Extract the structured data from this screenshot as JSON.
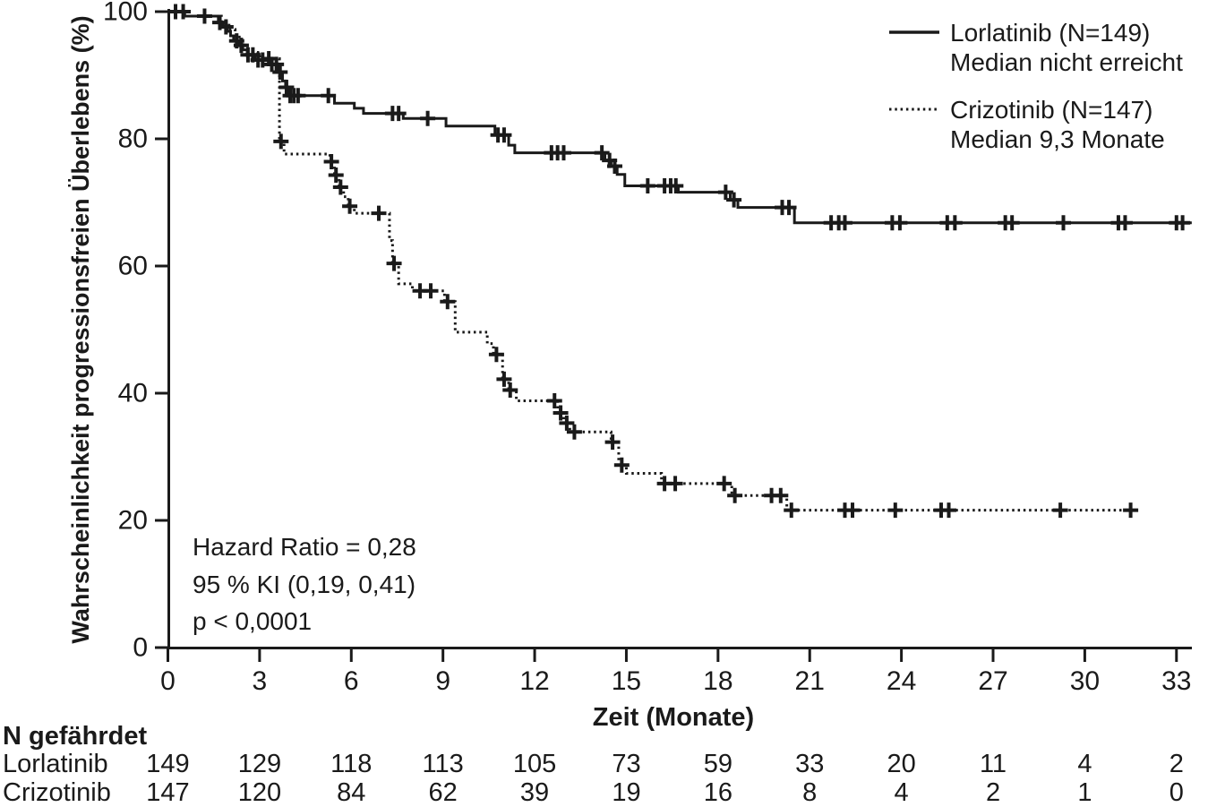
{
  "colors": {
    "ink": "#1a1a1a",
    "background": "#ffffff"
  },
  "legend": {
    "entries": [
      {
        "label": "Lorlatinib (N=149)",
        "sublabel": "Median nicht erreicht",
        "style": "solid"
      },
      {
        "label": "Crizotinib (N=147)",
        "sublabel": "Median 9,3 Monate",
        "style": "dotted"
      }
    ]
  },
  "annotation": {
    "line1": "Hazard Ratio = 0,28",
    "line2": "95 % KI (0,19, 0,41)",
    "line3": "p < 0,0001"
  },
  "chart_data": {
    "type": "line",
    "subtype": "kaplan-meier-step",
    "title": "",
    "xlabel": "Zeit (Monate)",
    "ylabel": "Wahrscheinlichkeit progressionsfreien Überlebens (%)",
    "xlim": [
      0,
      33.5
    ],
    "ylim": [
      0,
      100
    ],
    "xticks": [
      0,
      3,
      6,
      9,
      12,
      15,
      18,
      21,
      24,
      27,
      30,
      33
    ],
    "yticks": [
      0,
      20,
      40,
      60,
      80,
      100
    ],
    "grid": false,
    "legend_position": "top-right",
    "series": [
      {
        "name": "Lorlatinib",
        "n": 149,
        "median": "nicht erreicht",
        "line_style": "solid",
        "end_month": 33.5,
        "steps": [
          [
            0,
            100
          ],
          [
            0.55,
            99.3
          ],
          [
            1.65,
            98.3
          ],
          [
            1.8,
            97.6
          ],
          [
            1.95,
            96.9
          ],
          [
            2.05,
            96.2
          ],
          [
            2.15,
            95.4
          ],
          [
            2.3,
            94.7
          ],
          [
            2.45,
            94.0
          ],
          [
            2.6,
            93.2
          ],
          [
            2.85,
            92.4
          ],
          [
            3.3,
            91.7
          ],
          [
            3.6,
            90.5
          ],
          [
            3.75,
            89.1
          ],
          [
            3.85,
            88.1
          ],
          [
            3.95,
            86.8
          ],
          [
            5.45,
            85.6
          ],
          [
            6.1,
            84.8
          ],
          [
            6.4,
            84.0
          ],
          [
            7.7,
            83.2
          ],
          [
            9.1,
            82.0
          ],
          [
            10.7,
            80.6
          ],
          [
            11.15,
            79.0
          ],
          [
            11.35,
            77.8
          ],
          [
            14.3,
            76.6
          ],
          [
            14.5,
            75.7
          ],
          [
            14.7,
            74.4
          ],
          [
            14.95,
            72.6
          ],
          [
            16.7,
            71.6
          ],
          [
            18.4,
            70.4
          ],
          [
            18.65,
            69.2
          ],
          [
            20.5,
            66.8
          ]
        ],
        "censors": [
          [
            0.25,
            100
          ],
          [
            0.5,
            100
          ],
          [
            1.2,
            99.3
          ],
          [
            1.7,
            98.3
          ],
          [
            1.9,
            97.6
          ],
          [
            2.25,
            95.4
          ],
          [
            2.4,
            94.7
          ],
          [
            2.62,
            93.2
          ],
          [
            2.78,
            93.2
          ],
          [
            2.95,
            92.4
          ],
          [
            3.1,
            92.4
          ],
          [
            3.4,
            91.7
          ],
          [
            3.55,
            91.7
          ],
          [
            3.67,
            90.5
          ],
          [
            3.88,
            88.1
          ],
          [
            4.0,
            86.8
          ],
          [
            4.12,
            86.8
          ],
          [
            4.26,
            86.8
          ],
          [
            5.25,
            86.8
          ],
          [
            7.35,
            84.0
          ],
          [
            7.55,
            84.0
          ],
          [
            8.5,
            83.2
          ],
          [
            10.8,
            80.6
          ],
          [
            11.0,
            80.6
          ],
          [
            12.55,
            77.8
          ],
          [
            12.75,
            77.8
          ],
          [
            12.95,
            77.8
          ],
          [
            14.2,
            77.8
          ],
          [
            14.45,
            76.6
          ],
          [
            14.62,
            75.7
          ],
          [
            15.7,
            72.6
          ],
          [
            16.25,
            72.6
          ],
          [
            16.45,
            72.6
          ],
          [
            16.62,
            72.6
          ],
          [
            18.25,
            71.6
          ],
          [
            18.52,
            70.4
          ],
          [
            20.1,
            69.2
          ],
          [
            20.32,
            69.2
          ],
          [
            21.7,
            66.8
          ],
          [
            21.95,
            66.8
          ],
          [
            22.15,
            66.8
          ],
          [
            23.7,
            66.8
          ],
          [
            23.95,
            66.8
          ],
          [
            25.5,
            66.8
          ],
          [
            25.75,
            66.8
          ],
          [
            27.4,
            66.8
          ],
          [
            27.62,
            66.8
          ],
          [
            29.3,
            66.8
          ],
          [
            31.1,
            66.8
          ],
          [
            31.32,
            66.8
          ],
          [
            33.0,
            66.8
          ],
          [
            33.2,
            66.8
          ]
        ]
      },
      {
        "name": "Crizotinib",
        "n": 147,
        "median": "9,3 Monate",
        "line_style": "dotted",
        "end_month": 31.7,
        "steps": [
          [
            0,
            100
          ],
          [
            0.6,
            99.3
          ],
          [
            1.75,
            98.4
          ],
          [
            2.0,
            97.2
          ],
          [
            2.2,
            96.0
          ],
          [
            2.4,
            94.8
          ],
          [
            2.6,
            93.6
          ],
          [
            3.0,
            92.6
          ],
          [
            3.65,
            79.6
          ],
          [
            3.8,
            77.6
          ],
          [
            5.3,
            76.4
          ],
          [
            5.45,
            74.3
          ],
          [
            5.6,
            72.4
          ],
          [
            5.75,
            70.9
          ],
          [
            5.9,
            69.4
          ],
          [
            6.1,
            68.3
          ],
          [
            7.25,
            64.0
          ],
          [
            7.35,
            60.4
          ],
          [
            7.55,
            57.2
          ],
          [
            8.0,
            56.1
          ],
          [
            9.05,
            54.4
          ],
          [
            9.4,
            49.6
          ],
          [
            10.45,
            47.8
          ],
          [
            10.65,
            46.1
          ],
          [
            10.95,
            42.2
          ],
          [
            11.15,
            40.5
          ],
          [
            11.4,
            38.8
          ],
          [
            12.75,
            36.9
          ],
          [
            12.95,
            35.3
          ],
          [
            13.15,
            33.9
          ],
          [
            14.5,
            32.3
          ],
          [
            14.75,
            28.7
          ],
          [
            15.0,
            27.4
          ],
          [
            16.15,
            25.8
          ],
          [
            18.45,
            23.9
          ],
          [
            20.25,
            21.6
          ]
        ],
        "censors": [
          [
            3.3,
            92.6
          ],
          [
            3.7,
            79.6
          ],
          [
            5.35,
            76.4
          ],
          [
            5.5,
            74.3
          ],
          [
            5.65,
            72.4
          ],
          [
            5.95,
            69.4
          ],
          [
            6.9,
            68.3
          ],
          [
            7.4,
            60.4
          ],
          [
            8.25,
            56.1
          ],
          [
            8.6,
            56.1
          ],
          [
            9.15,
            54.4
          ],
          [
            10.75,
            46.1
          ],
          [
            11.0,
            42.2
          ],
          [
            11.2,
            40.5
          ],
          [
            12.65,
            38.8
          ],
          [
            12.85,
            36.9
          ],
          [
            13.05,
            35.3
          ],
          [
            13.3,
            33.9
          ],
          [
            14.55,
            32.3
          ],
          [
            14.85,
            28.7
          ],
          [
            16.25,
            25.8
          ],
          [
            16.6,
            25.8
          ],
          [
            18.2,
            25.8
          ],
          [
            18.55,
            23.9
          ],
          [
            19.75,
            23.9
          ],
          [
            20.05,
            23.9
          ],
          [
            20.4,
            21.6
          ],
          [
            22.15,
            21.6
          ],
          [
            22.4,
            21.6
          ],
          [
            23.8,
            21.6
          ],
          [
            25.3,
            21.6
          ],
          [
            25.55,
            21.6
          ],
          [
            29.2,
            21.6
          ],
          [
            31.5,
            21.6
          ]
        ]
      }
    ],
    "annotation": [
      "Hazard Ratio = 0,28",
      "95 % KI (0,19, 0,41)",
      "p < 0,0001"
    ],
    "risk_table": {
      "title": "N gefährdet",
      "times": [
        0,
        3,
        6,
        9,
        12,
        15,
        18,
        21,
        24,
        27,
        30,
        33
      ],
      "rows": [
        {
          "label": "Lorlatinib",
          "values": [
            149,
            129,
            118,
            113,
            105,
            73,
            59,
            33,
            20,
            11,
            4,
            2
          ]
        },
        {
          "label": "Crizotinib",
          "values": [
            147,
            120,
            84,
            62,
            39,
            19,
            16,
            8,
            4,
            2,
            1,
            0
          ]
        }
      ]
    }
  }
}
